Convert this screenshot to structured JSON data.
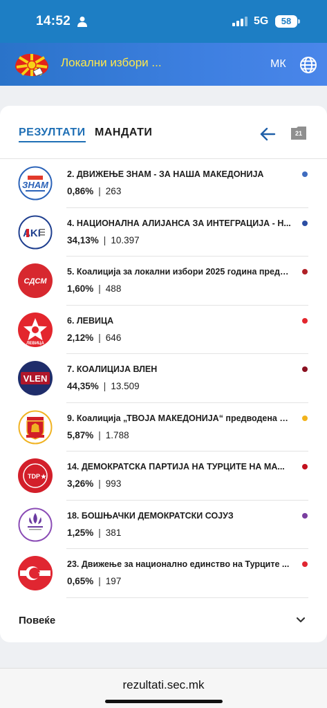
{
  "status_bar": {
    "time": "14:52",
    "network": "5G",
    "battery": "58"
  },
  "header": {
    "title": "Локални избори ...",
    "language": "МК",
    "logo_icon": "macedonia-sun-flag-icon",
    "globe_icon": "globe-icon"
  },
  "tabs": {
    "results": "РЕЗУЛТАТИ",
    "mandates": "МАНДАТИ"
  },
  "toolbar": {
    "calendar_day": "21"
  },
  "parties": [
    {
      "name": "2. ДВИЖЕЊЕ ЗНАМ - ЗА НАША МАКЕДОНИЈА",
      "percent": "0,86%",
      "votes": "263",
      "color": "#3f6cbf",
      "logo_text": "ЗНАМ"
    },
    {
      "name": "4. НАЦИОНАЛНА АЛИЈАНСА ЗА ИНТЕГРАЦИЈА - Н...",
      "percent": "34,13%",
      "votes": "10.397",
      "color": "#2c4ea3",
      "logo_text": "AKI"
    },
    {
      "name": "5. Коалиција за локални избори 2025 година предв...",
      "percent": "1,60%",
      "votes": "488",
      "color": "#b02026",
      "logo_text": "СДСМ"
    },
    {
      "name": "6. ЛЕВИЦА",
      "percent": "2,12%",
      "votes": "646",
      "color": "#e3262d",
      "logo_text": "ЛЕВИЦА"
    },
    {
      "name": "7. КОАЛИЦИЈА ВЛЕН",
      "percent": "44,35%",
      "votes": "13.509",
      "color": "#8a1020",
      "logo_text": "VLEN"
    },
    {
      "name": "9. Коалиција „ТВОЈА МАКЕДОНИЈА“ предводена о...",
      "percent": "5,87%",
      "votes": "1.788",
      "color": "#f2b31b",
      "logo_text": ""
    },
    {
      "name": "14. ДЕМОКРАТСКА ПАРТИЈА НА ТУРЦИТЕ НА МА...",
      "percent": "3,26%",
      "votes": "993",
      "color": "#c2101d",
      "logo_text": "TDP"
    },
    {
      "name": "18. БОШЊАЧКИ ДЕМОКРАТСКИ СОЈУЗ",
      "percent": "1,25%",
      "votes": "381",
      "color": "#7a3ea0",
      "logo_text": ""
    },
    {
      "name": "23. Движење за национално единство на Турците ...",
      "percent": "0,65%",
      "votes": "197",
      "color": "#e02631",
      "logo_text": ""
    }
  ],
  "more": {
    "label": "Повеќе"
  },
  "browser": {
    "url": "rezultati.sec.mk"
  }
}
